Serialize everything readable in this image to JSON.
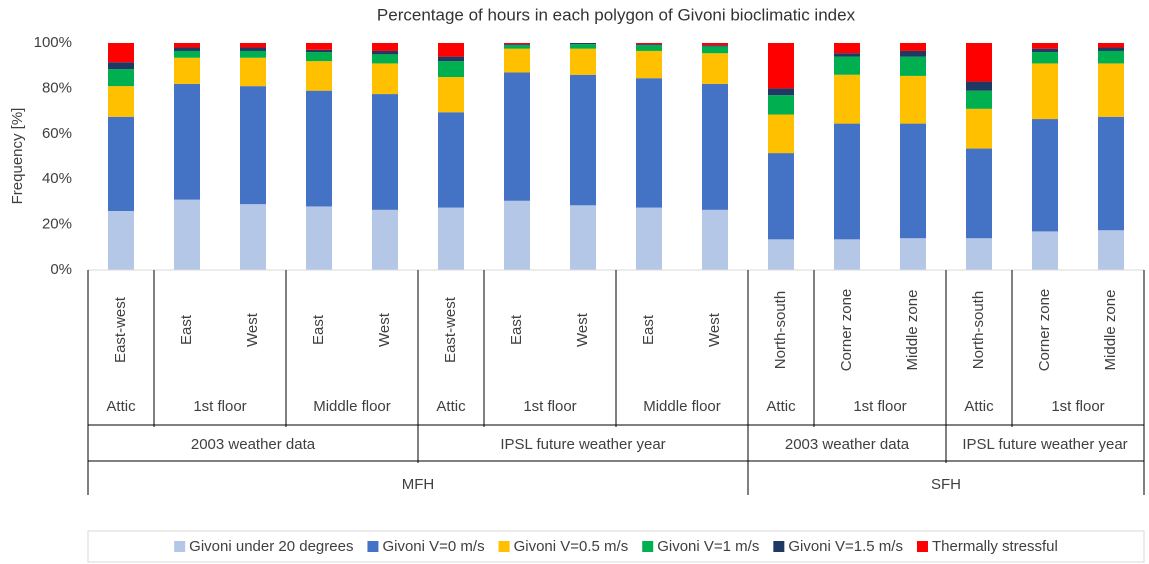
{
  "chart_data": {
    "type": "stacked-bar",
    "title": "Percentage of hours in each polygon of Givoni bioclimatic index",
    "y_label": "Frequency [%]",
    "categories": [
      "East-west",
      "East",
      "West",
      "East",
      "West",
      "East-west",
      "East",
      "West",
      "East",
      "West",
      "North-south",
      "Corner zone",
      "Middle zone",
      "North-south",
      "Corner zone",
      "Middle zone"
    ],
    "category_levels": [
      [
        {
          "label": "Attic",
          "count": 1
        },
        {
          "label": "1st floor",
          "count": 2
        },
        {
          "label": "Middle floor",
          "count": 2
        },
        {
          "label": "Attic",
          "count": 1
        },
        {
          "label": "1st floor",
          "count": 2
        },
        {
          "label": "Middle floor",
          "count": 2
        },
        {
          "label": "Attic",
          "count": 1
        },
        {
          "label": "1st floor",
          "count": 2
        },
        {
          "label": "Attic",
          "count": 1
        },
        {
          "label": "1st floor",
          "count": 2
        }
      ],
      [
        {
          "label": "2003 weather data",
          "count": 5
        },
        {
          "label": "IPSL future weather year",
          "count": 5
        },
        {
          "label": "2003 weather data",
          "count": 3
        },
        {
          "label": "IPSL future weather year",
          "count": 3
        }
      ],
      [
        {
          "label": "MFH",
          "count": 10
        },
        {
          "label": "SFH",
          "count": 6
        }
      ]
    ],
    "series": [
      {
        "name": "Givoni under 20 degrees",
        "color": "#b4c7e7",
        "values": [
          26,
          31,
          29,
          28,
          26.5,
          27.5,
          30.5,
          28.5,
          27.5,
          26.5,
          13.5,
          13.5,
          14,
          14,
          17,
          17.5
        ]
      },
      {
        "name": "Givoni V=0 m/s",
        "color": "#4472c4",
        "values": [
          41.5,
          51,
          52,
          51,
          51,
          42,
          56.5,
          57.5,
          57,
          55.5,
          38,
          51,
          50.5,
          39.5,
          49.5,
          50
        ]
      },
      {
        "name": "Givoni V=0.5 m/s",
        "color": "#ffc000",
        "values": [
          13.5,
          11.5,
          12.5,
          13,
          13.5,
          15.5,
          10.5,
          11.5,
          12,
          13.5,
          17,
          21.5,
          21,
          17.5,
          24.5,
          23.5
        ]
      },
      {
        "name": "Givoni V=1 m/s",
        "color": "#00b050",
        "values": [
          7.5,
          3,
          3,
          4,
          4,
          7,
          1.5,
          2,
          2.5,
          3,
          8.5,
          8,
          8.5,
          8,
          5,
          5.5
        ]
      },
      {
        "name": "Givoni V=1.5 m/s",
        "color": "#203864",
        "values": [
          3,
          1.5,
          1.5,
          1,
          1.5,
          2,
          0.5,
          0.5,
          0.5,
          0.5,
          3,
          1.5,
          2.5,
          4,
          1.5,
          1.5
        ]
      },
      {
        "name": "Thermally stressful",
        "color": "#ff0000",
        "values": [
          8.5,
          2,
          2,
          3,
          3.5,
          6,
          0.5,
          0,
          0.5,
          1,
          20,
          4.5,
          3.5,
          17,
          2.5,
          2
        ]
      }
    ],
    "ylim": [
      0,
      100
    ],
    "yticks": [
      {
        "value": 0,
        "label": "0%"
      },
      {
        "value": 20,
        "label": "20%"
      },
      {
        "value": 40,
        "label": "40%"
      },
      {
        "value": 60,
        "label": "60%"
      },
      {
        "value": 80,
        "label": "80%"
      },
      {
        "value": 100,
        "label": "100%"
      }
    ],
    "grid": false,
    "legend": "bottom"
  }
}
